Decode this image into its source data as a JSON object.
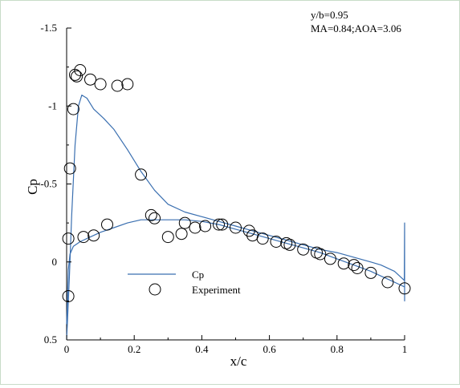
{
  "chart_data": {
    "type": "line",
    "annotations": [
      "y/b=0.95",
      "MA=0.84;AOA=3.06"
    ],
    "xlabel": "x/c",
    "ylabel": "Cp",
    "xlim": [
      0,
      1
    ],
    "ylim": [
      0.5,
      -1.5
    ],
    "y_inverted": true,
    "x_ticks": [
      "0",
      "0.2",
      "0.4",
      "0.6",
      "0.8",
      "1"
    ],
    "y_ticks": [
      "-1.5",
      "-1",
      "-0.5",
      "0",
      "0.5"
    ],
    "legend_position": "bottom-left",
    "grid": false,
    "series": [
      {
        "name": "Cp",
        "kind": "line",
        "color": "#3a6fb0",
        "segments": [
          {
            "part": "upper",
            "x": [
              1.0,
              0.97,
              0.93,
              0.9,
              0.85,
              0.8,
              0.75,
              0.7,
              0.65,
              0.6,
              0.55,
              0.5,
              0.45,
              0.4,
              0.35,
              0.3,
              0.26,
              0.22,
              0.18,
              0.14,
              0.11,
              0.08,
              0.06,
              0.045,
              0.035,
              0.025,
              0.015,
              0.008,
              0.003,
              0.0
            ],
            "y": [
              0.12,
              0.06,
              0.02,
              0.0,
              -0.03,
              -0.06,
              -0.08,
              -0.11,
              -0.14,
              -0.17,
              -0.2,
              -0.23,
              -0.26,
              -0.29,
              -0.32,
              -0.37,
              -0.46,
              -0.58,
              -0.72,
              -0.85,
              -0.92,
              -0.98,
              -1.05,
              -1.07,
              -1.0,
              -0.75,
              -0.3,
              0.1,
              0.35,
              0.5
            ]
          },
          {
            "part": "lower",
            "x": [
              0.0,
              0.005,
              0.01,
              0.02,
              0.04,
              0.07,
              0.1,
              0.14,
              0.18,
              0.22,
              0.26,
              0.3,
              0.35,
              0.4,
              0.45,
              0.5,
              0.55,
              0.6,
              0.65,
              0.7,
              0.75,
              0.8,
              0.85,
              0.9,
              0.93,
              0.96,
              0.98,
              1.0
            ],
            "y": [
              0.4,
              0.05,
              -0.05,
              -0.1,
              -0.13,
              -0.16,
              -0.19,
              -0.22,
              -0.25,
              -0.27,
              -0.27,
              -0.27,
              -0.27,
              -0.26,
              -0.24,
              -0.21,
              -0.18,
              -0.15,
              -0.12,
              -0.09,
              -0.06,
              -0.02,
              0.02,
              0.06,
              0.09,
              0.12,
              0.14,
              0.16
            ]
          },
          {
            "part": "trailing-edge spike",
            "x": [
              0.999,
              1.0,
              1.0,
              1.0,
              1.0
            ],
            "y": [
              0.12,
              -0.25,
              0.25,
              -0.2,
              0.12
            ]
          }
        ]
      },
      {
        "name": "Experiment",
        "kind": "scatter",
        "marker": "hollow-circle",
        "x": [
          0.005,
          0.01,
          0.02,
          0.025,
          0.03,
          0.04,
          0.05,
          0.07,
          0.08,
          0.1,
          0.12,
          0.15,
          0.18,
          0.22,
          0.25,
          0.26,
          0.3,
          0.34,
          0.35,
          0.38,
          0.41,
          0.45,
          0.46,
          0.5,
          0.54,
          0.55,
          0.58,
          0.62,
          0.65,
          0.66,
          0.7,
          0.74,
          0.75,
          0.78,
          0.82,
          0.85,
          0.86,
          0.9,
          0.95,
          1.0,
          0.005
        ],
        "y": [
          0.22,
          -0.6,
          -0.98,
          -1.2,
          -1.19,
          -1.23,
          -0.16,
          -1.17,
          -0.17,
          -1.14,
          -0.24,
          -1.13,
          -1.14,
          -0.56,
          -0.3,
          -0.28,
          -0.16,
          -0.18,
          -0.25,
          -0.22,
          -0.23,
          -0.24,
          -0.24,
          -0.22,
          -0.2,
          -0.17,
          -0.15,
          -0.13,
          -0.12,
          -0.11,
          -0.08,
          -0.06,
          -0.05,
          -0.02,
          0.01,
          0.02,
          0.04,
          0.07,
          0.13,
          0.17,
          -0.15
        ]
      }
    ]
  }
}
